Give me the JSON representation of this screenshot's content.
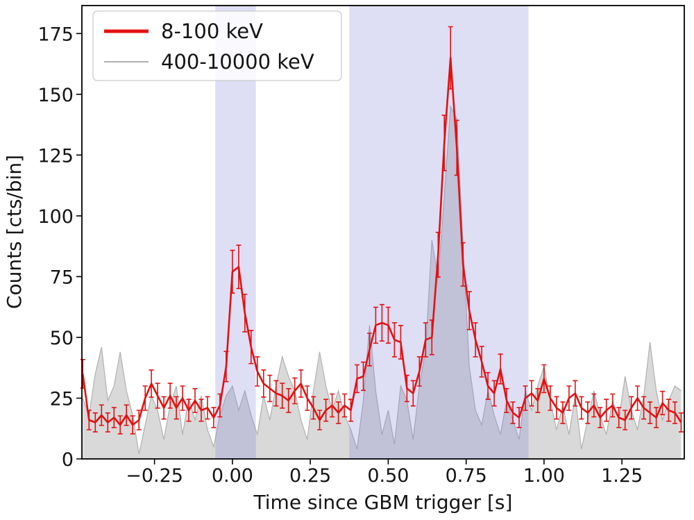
{
  "figure": {
    "background": "#ffffff"
  },
  "chart_data": {
    "type": "line",
    "title": "",
    "xlabel": "Time since GBM trigger [s]",
    "ylabel": "Counts [cts/bin]",
    "xlim": [
      -0.483,
      1.45
    ],
    "ylim": [
      0,
      186.5
    ],
    "grid": false,
    "legend_position": "upper left",
    "xticks": [
      -0.25,
      0.0,
      0.25,
      0.5,
      0.75,
      1.0,
      1.25
    ],
    "xtick_labels": [
      "−0.25",
      "0.00",
      "0.25",
      "0.50",
      "0.75",
      "1.00",
      "1.25"
    ],
    "yticks": [
      0,
      25,
      50,
      75,
      100,
      125,
      150,
      175
    ],
    "ytick_labels": [
      "0",
      "25",
      "50",
      "75",
      "100",
      "125",
      "150",
      "175"
    ],
    "shaded_intervals": [
      {
        "x0": -0.055,
        "x1": 0.075
      },
      {
        "x0": 0.375,
        "x1": 0.95
      }
    ],
    "band_color": "#7b7bd6",
    "band_opacity": 0.25,
    "x": [
      -0.48,
      -0.46,
      -0.44,
      -0.42,
      -0.4,
      -0.38,
      -0.36,
      -0.34,
      -0.32,
      -0.3,
      -0.28,
      -0.26,
      -0.24,
      -0.22,
      -0.2,
      -0.18,
      -0.16,
      -0.14,
      -0.12,
      -0.1,
      -0.08,
      -0.06,
      -0.04,
      -0.02,
      0.0,
      0.02,
      0.04,
      0.06,
      0.08,
      0.1,
      0.12,
      0.14,
      0.16,
      0.18,
      0.2,
      0.22,
      0.24,
      0.26,
      0.28,
      0.3,
      0.32,
      0.34,
      0.36,
      0.38,
      0.4,
      0.42,
      0.44,
      0.46,
      0.48,
      0.5,
      0.52,
      0.54,
      0.56,
      0.58,
      0.6,
      0.62,
      0.64,
      0.66,
      0.68,
      0.7,
      0.72,
      0.74,
      0.76,
      0.78,
      0.8,
      0.82,
      0.84,
      0.86,
      0.88,
      0.9,
      0.92,
      0.94,
      0.96,
      0.98,
      1.0,
      1.02,
      1.04,
      1.06,
      1.08,
      1.1,
      1.12,
      1.14,
      1.16,
      1.18,
      1.2,
      1.22,
      1.24,
      1.26,
      1.28,
      1.3,
      1.32,
      1.34,
      1.36,
      1.38,
      1.4,
      1.42,
      1.44
    ],
    "series": [
      {
        "name": "8-100 keV",
        "color": "#e31010",
        "style": "line-with-errorbars",
        "linewidth": 2.6,
        "y": [
          35,
          16,
          15,
          18,
          15,
          17,
          14,
          18,
          14,
          16,
          25,
          31,
          26,
          21,
          26,
          21,
          25,
          20,
          24,
          20,
          21,
          17,
          22,
          38,
          77,
          79,
          60,
          46,
          36,
          31,
          29,
          27,
          26,
          24,
          28,
          31,
          25,
          21,
          16,
          20,
          22,
          19,
          22,
          20,
          33,
          34,
          45,
          55,
          56,
          55,
          49,
          48,
          29,
          27,
          36,
          49,
          50,
          84,
          130,
          165,
          128,
          80,
          61,
          49,
          40,
          30,
          27,
          37,
          24,
          19,
          17,
          25,
          27,
          24,
          33,
          25,
          21,
          19,
          25,
          27,
          21,
          19,
          22,
          17,
          20,
          22,
          17,
          16,
          21,
          25,
          21,
          19,
          17,
          23,
          20,
          19,
          15
        ],
        "yerr": [
          5.9,
          4.0,
          3.9,
          4.2,
          3.9,
          4.1,
          3.7,
          4.2,
          3.7,
          4.0,
          5.0,
          5.6,
          5.1,
          4.6,
          5.1,
          4.6,
          5.0,
          4.5,
          4.9,
          4.5,
          4.6,
          4.1,
          4.7,
          6.2,
          8.8,
          8.9,
          7.7,
          6.8,
          6.0,
          5.6,
          5.4,
          5.2,
          5.1,
          4.9,
          5.3,
          5.6,
          5.0,
          4.6,
          4.0,
          4.5,
          4.7,
          4.4,
          4.7,
          4.5,
          5.7,
          5.8,
          6.7,
          7.4,
          7.5,
          7.4,
          7.0,
          6.9,
          5.4,
          5.2,
          6.0,
          7.0,
          7.1,
          9.2,
          11.4,
          12.8,
          11.3,
          8.9,
          7.8,
          7.0,
          6.3,
          5.5,
          5.2,
          6.1,
          4.9,
          4.4,
          4.1,
          5.0,
          5.2,
          4.9,
          5.7,
          5.0,
          4.6,
          4.4,
          5.0,
          5.2,
          4.6,
          4.4,
          4.7,
          4.1,
          4.5,
          4.7,
          4.1,
          4.0,
          4.6,
          5.0,
          4.6,
          4.4,
          4.1,
          4.8,
          4.5,
          4.4,
          3.9
        ]
      },
      {
        "name": "400-10000 keV",
        "color": "#b0b0b0",
        "fill": "#cccccc",
        "fill_opacity": 0.75,
        "style": "filled-line",
        "linewidth": 1.2,
        "y": [
          25,
          18,
          35,
          46,
          24,
          30,
          44,
          28,
          18,
          2,
          14,
          26,
          20,
          8,
          22,
          30,
          10,
          25,
          16,
          26,
          12,
          5,
          18,
          26,
          30,
          20,
          28,
          18,
          10,
          26,
          16,
          30,
          42,
          34,
          28,
          16,
          8,
          28,
          44,
          30,
          20,
          28,
          18,
          12,
          4,
          24,
          55,
          28,
          10,
          20,
          6,
          30,
          24,
          8,
          30,
          45,
          90,
          74,
          108,
          145,
          140,
          88,
          38,
          20,
          14,
          28,
          18,
          10,
          24,
          16,
          8,
          28,
          20,
          30,
          38,
          24,
          12,
          22,
          10,
          26,
          4,
          16,
          28,
          18,
          10,
          24,
          16,
          34,
          20,
          12,
          26,
          48,
          28,
          16,
          24,
          30,
          28
        ]
      }
    ]
  }
}
